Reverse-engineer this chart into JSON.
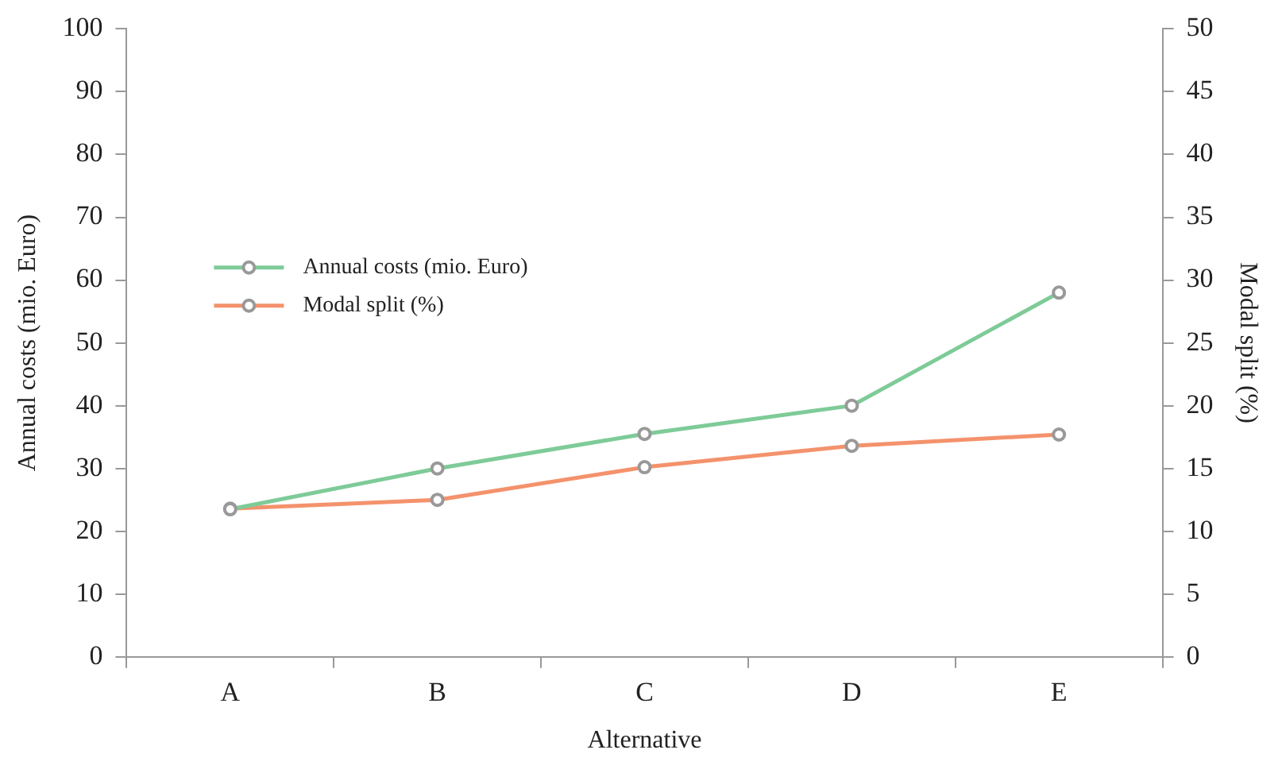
{
  "chart_data": {
    "type": "line",
    "xlabel": "Alternative",
    "ylabel": "Annual costs (mio. Euro)",
    "y2label": "Modal split (%)",
    "categories": [
      "A",
      "B",
      "C",
      "D",
      "E"
    ],
    "series": [
      {
        "name": "Annual costs (mio. Euro)",
        "color": "#7ecb98",
        "values": [
          23.5,
          30,
          35.5,
          40,
          58
        ]
      },
      {
        "name": "Modal split (%)",
        "color": "#f4926c",
        "values": [
          11.8,
          12.5,
          15.1,
          16.8,
          17.7
        ],
        "axis": "y2"
      }
    ],
    "ylim": [
      0,
      100
    ],
    "yticks": [
      0,
      10,
      20,
      30,
      40,
      50,
      60,
      70,
      80,
      90,
      100
    ],
    "y2lim": [
      0,
      50
    ],
    "y2ticks": [
      0,
      5,
      10,
      15,
      20,
      25,
      30,
      35,
      40,
      45,
      50
    ],
    "grid": false,
    "legend": "left",
    "marker": "circle",
    "line_style": "solid"
  }
}
